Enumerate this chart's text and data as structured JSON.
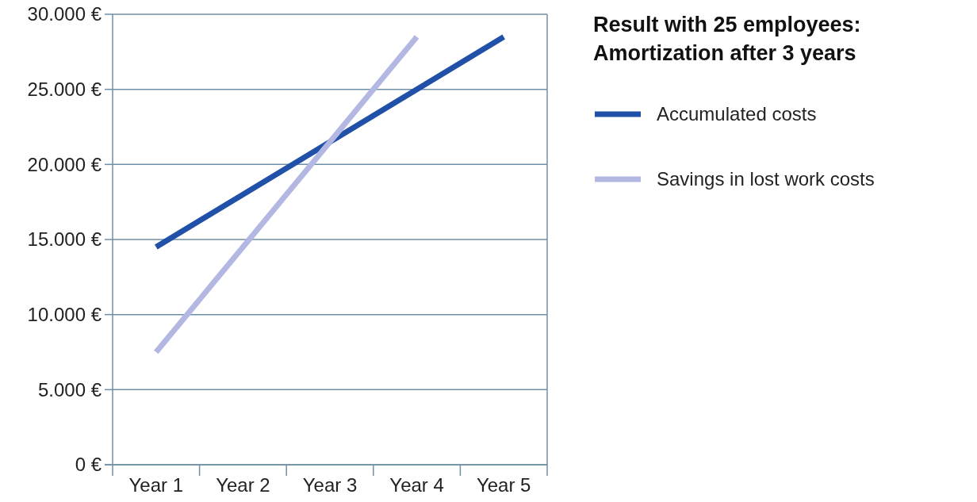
{
  "chart_data": {
    "type": "line",
    "title": "Result with 25 employees: Amortization after 3 years",
    "categories": [
      "Year 1",
      "Year 2",
      "Year 3",
      "Year 4",
      "Year 5"
    ],
    "ylim": [
      0,
      30000
    ],
    "yticks": [
      {
        "value": 0,
        "label": "0 €"
      },
      {
        "value": 5000,
        "label": "5.000 €"
      },
      {
        "value": 10000,
        "label": "10.000 €"
      },
      {
        "value": 15000,
        "label": "15.000 €"
      },
      {
        "value": 20000,
        "label": "20.000 €"
      },
      {
        "value": 25000,
        "label": "25.000 €"
      },
      {
        "value": 30000,
        "label": "30.000 €"
      }
    ],
    "grid": "y",
    "legend": "right",
    "marker": "none",
    "line_style": "solid",
    "series": [
      {
        "name": "Accumulated costs",
        "color": "#2150a8",
        "values": [
          14500,
          18000,
          21500,
          25000,
          28500
        ]
      },
      {
        "name": "Savings in lost work costs",
        "color": "#b3b8e3",
        "values": [
          7500,
          14500,
          21500,
          28500,
          null
        ]
      }
    ]
  }
}
